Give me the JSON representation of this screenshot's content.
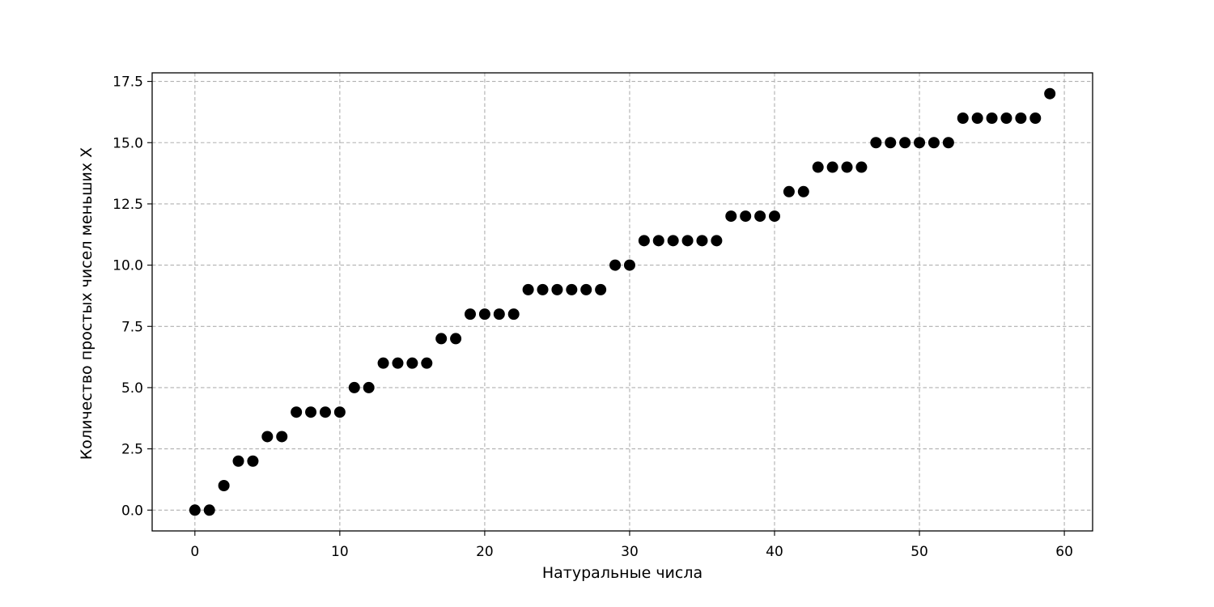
{
  "chart_data": {
    "type": "scatter",
    "title": "",
    "xlabel": "Натуральные числа",
    "ylabel": "Количество простых чисел меньших X",
    "xlim": [
      -2.95,
      61.95
    ],
    "ylim": [
      -0.85,
      17.85
    ],
    "xticks": [
      0,
      10,
      20,
      30,
      40,
      50,
      60
    ],
    "xtick_labels": [
      "0",
      "10",
      "20",
      "30",
      "40",
      "50",
      "60"
    ],
    "yticks": [
      0,
      2.5,
      5,
      7.5,
      10,
      12.5,
      15,
      17.5
    ],
    "ytick_labels": [
      "0.0",
      "2.5",
      "5.0",
      "7.5",
      "10.0",
      "12.5",
      "15.0",
      "17.5"
    ],
    "grid": true,
    "grid_style": "dashed",
    "legend": "none",
    "marker_color": "#000000",
    "series": [
      {
        "x": [
          0,
          1,
          2,
          3,
          4,
          5,
          6,
          7,
          8,
          9,
          10,
          11,
          12,
          13,
          14,
          15,
          16,
          17,
          18,
          19,
          20,
          21,
          22,
          23,
          24,
          25,
          26,
          27,
          28,
          29,
          30,
          31,
          32,
          33,
          34,
          35,
          36,
          37,
          38,
          39,
          40,
          41,
          42,
          43,
          44,
          45,
          46,
          47,
          48,
          49,
          50,
          51,
          52,
          53,
          54,
          55,
          56,
          57,
          58,
          59
        ],
        "y": [
          0,
          0,
          1,
          2,
          2,
          3,
          3,
          4,
          4,
          4,
          4,
          5,
          5,
          6,
          6,
          6,
          6,
          7,
          7,
          8,
          8,
          8,
          8,
          9,
          9,
          9,
          9,
          9,
          9,
          10,
          10,
          11,
          11,
          11,
          11,
          11,
          11,
          12,
          12,
          12,
          12,
          13,
          13,
          14,
          14,
          14,
          14,
          15,
          15,
          15,
          15,
          15,
          15,
          16,
          16,
          16,
          16,
          16,
          16,
          17
        ]
      }
    ]
  }
}
